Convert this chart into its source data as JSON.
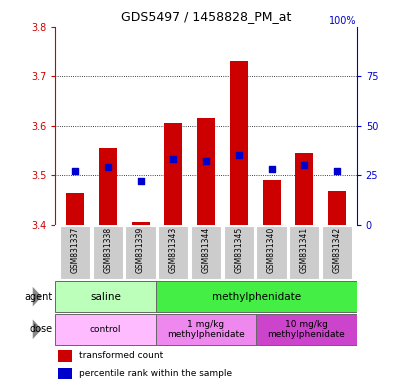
{
  "title": "GDS5497 / 1458828_PM_at",
  "samples": [
    "GSM831337",
    "GSM831338",
    "GSM831339",
    "GSM831343",
    "GSM831344",
    "GSM831345",
    "GSM831340",
    "GSM831341",
    "GSM831342"
  ],
  "red_values": [
    3.465,
    3.555,
    3.405,
    3.605,
    3.615,
    3.73,
    3.49,
    3.545,
    3.468
  ],
  "blue_pct": [
    27,
    29,
    22,
    33,
    32,
    35,
    28,
    30,
    27
  ],
  "y_min": 3.4,
  "y_max": 3.8,
  "y_ticks_left": [
    3.4,
    3.5,
    3.6,
    3.7,
    3.8
  ],
  "y_ticks_right": [
    0,
    25,
    50,
    75
  ],
  "grid_lines": [
    3.5,
    3.6,
    3.7
  ],
  "agent_groups": [
    {
      "label": "saline",
      "start": 0,
      "end": 3,
      "color": "#bbffbb"
    },
    {
      "label": "methylphenidate",
      "start": 3,
      "end": 9,
      "color": "#44ee44"
    }
  ],
  "dose_groups": [
    {
      "label": "control",
      "start": 0,
      "end": 3,
      "color": "#ffbbff"
    },
    {
      "label": "1 mg/kg\nmethylphenidate",
      "start": 3,
      "end": 6,
      "color": "#ee88ee"
    },
    {
      "label": "10 mg/kg\nmethylphenidate",
      "start": 6,
      "end": 9,
      "color": "#cc44cc"
    }
  ],
  "bar_color": "#cc0000",
  "blue_color": "#0000cc",
  "gray_bg": "#cccccc",
  "legend_red": "transformed count",
  "legend_blue": "percentile rank within the sample",
  "bar_color_left": "#cc0000",
  "axis_color_right": "#0000cc"
}
